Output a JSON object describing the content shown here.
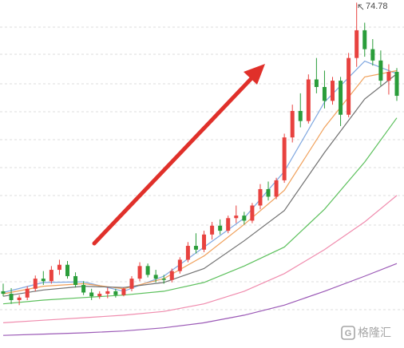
{
  "chart_data": {
    "type": "candlestick",
    "up_color": "#e8423f",
    "down_color": "#2a9d3a",
    "ylim": [
      20,
      75.2
    ],
    "open": [
      29.0,
      28.6,
      27.6,
      28.0,
      29.4,
      31.0,
      30.6,
      32.4,
      33.2,
      31.4,
      30.0,
      28.8,
      28.2,
      28.6,
      29.0,
      28.4,
      29.4,
      31.0,
      33.0,
      31.6,
      31.0,
      30.8,
      32.2,
      34.0,
      36.2,
      35.6,
      38.0,
      39.4,
      38.6,
      40.6,
      41.0,
      40.2,
      42.6,
      45.2,
      44.0,
      46.6,
      53.4,
      57.6,
      56.0,
      62.6,
      61.4,
      59.2,
      62.4,
      57.0,
      66.0,
      70.4,
      67.4,
      65.6,
      62.4,
      63.8
    ],
    "high": [
      30.2,
      29.5,
      28.4,
      29.8,
      31.5,
      32.2,
      33.0,
      34.0,
      33.8,
      32.0,
      30.6,
      29.4,
      29.0,
      29.6,
      29.4,
      29.6,
      31.4,
      33.6,
      33.4,
      32.4,
      31.6,
      32.6,
      34.4,
      36.8,
      38.2,
      38.6,
      40.0,
      40.4,
      41.0,
      42.6,
      41.6,
      43.0,
      46.0,
      46.4,
      47.0,
      54.0,
      58.6,
      60.4,
      63.4,
      66.0,
      64.0,
      63.0,
      63.0,
      66.8,
      74.78,
      71.6,
      69.0,
      67.2,
      65.0,
      64.4
    ],
    "low": [
      28.2,
      27.0,
      26.8,
      27.6,
      29.0,
      30.0,
      30.2,
      31.6,
      31.0,
      29.6,
      28.4,
      27.6,
      27.8,
      27.9,
      28.0,
      28.2,
      29.0,
      30.6,
      31.2,
      30.4,
      30.2,
      30.4,
      31.8,
      33.6,
      35.0,
      35.2,
      37.2,
      38.0,
      38.2,
      39.8,
      39.6,
      39.8,
      42.0,
      43.4,
      43.6,
      46.2,
      52.6,
      55.0,
      55.6,
      60.4,
      58.0,
      58.6,
      55.2,
      56.6,
      64.6,
      66.2,
      64.8,
      61.6,
      60.2,
      59.2
    ],
    "close": [
      28.6,
      27.6,
      28.0,
      29.4,
      31.0,
      30.6,
      32.4,
      33.2,
      31.4,
      30.0,
      28.8,
      28.2,
      28.6,
      29.0,
      28.4,
      29.4,
      31.0,
      33.0,
      31.6,
      31.0,
      30.8,
      32.2,
      34.0,
      36.2,
      35.6,
      38.0,
      39.4,
      38.6,
      40.6,
      41.0,
      40.2,
      42.6,
      45.2,
      44.0,
      46.6,
      53.4,
      57.6,
      56.0,
      62.6,
      61.4,
      59.2,
      62.4,
      57.0,
      66.0,
      70.4,
      67.4,
      65.6,
      62.4,
      63.8,
      60.0
    ],
    "series": [
      {
        "color": "#7fa7e0",
        "x": [
          0,
          5,
          10,
          15,
          20,
          25,
          30,
          35,
          40,
          45,
          49
        ],
        "values": [
          28.8,
          30.4,
          30.5,
          29.0,
          31.4,
          36.0,
          40.6,
          48,
          59,
          65.5,
          63.5
        ]
      },
      {
        "color": "#f0a05a",
        "x": [
          0,
          5,
          10,
          15,
          20,
          25,
          30,
          35,
          40,
          45,
          49
        ],
        "values": [
          28.6,
          29.8,
          30.2,
          29.4,
          31.0,
          34.6,
          39.6,
          45,
          55,
          63,
          64
        ]
      },
      {
        "color": "#707070",
        "x": [
          0,
          5,
          10,
          15,
          20,
          25,
          30,
          35,
          40,
          45,
          49
        ],
        "values": [
          28.2,
          29.2,
          29.8,
          29.6,
          30.4,
          32.6,
          37.0,
          41.8,
          51,
          59.5,
          63.5
        ]
      },
      {
        "color": "#5cc05c",
        "x": [
          0,
          5,
          10,
          15,
          20,
          25,
          30,
          35,
          40,
          45,
          49
        ],
        "values": [
          27.0,
          27.6,
          28.0,
          28.4,
          29.0,
          30.4,
          33.0,
          36.0,
          42,
          49.5,
          56.5
        ]
      },
      {
        "color": "#f08cae",
        "x": [
          0,
          5,
          10,
          15,
          20,
          25,
          30,
          35,
          40,
          45,
          49
        ],
        "values": [
          24.0,
          24.4,
          24.8,
          25.2,
          25.8,
          27.0,
          29.0,
          31.8,
          35.6,
          40.0,
          44.2
        ]
      },
      {
        "color": "#9b59b6",
        "x": [
          0,
          5,
          10,
          15,
          20,
          25,
          30,
          35,
          40,
          45,
          49
        ],
        "values": [
          22.0,
          22.2,
          22.4,
          22.7,
          23.2,
          24.0,
          25.2,
          26.8,
          29.0,
          31.4,
          33.4
        ]
      }
    ],
    "watermark": "格隆汇"
  }
}
